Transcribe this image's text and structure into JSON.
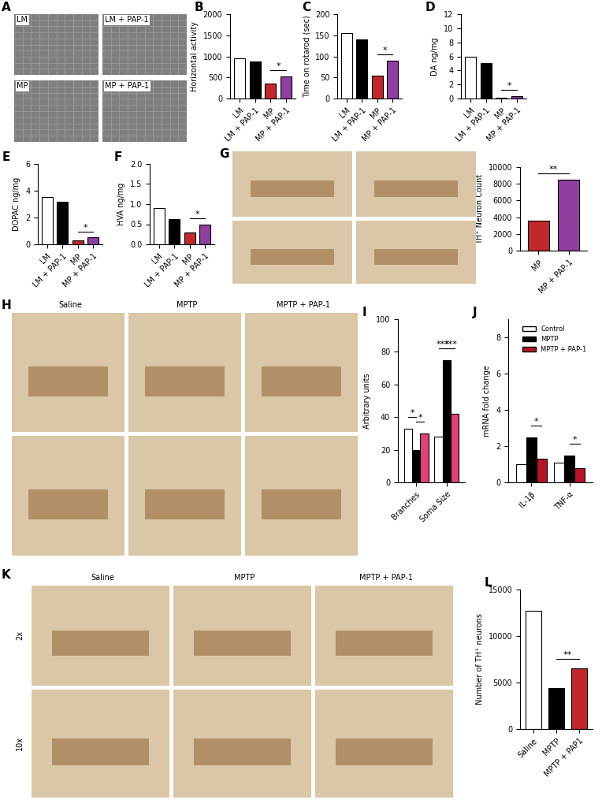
{
  "chart_data": [
    {
      "type": "bar",
      "title": "B",
      "ylabel": "Horizontal activity",
      "categories": [
        "LM",
        "LM + PAP-1",
        "MP",
        "MP + PAP-1"
      ],
      "values": [
        960,
        870,
        360,
        530
      ],
      "colors": [
        "white",
        "black",
        "#c0282d",
        "#8e3fa0"
      ],
      "ylim": [
        0,
        2000
      ],
      "yticks": [
        0,
        500,
        1000,
        1500,
        2000
      ],
      "annotations": [
        {
          "text": "*",
          "categories": [
            "MP",
            "MP + PAP-1"
          ]
        }
      ]
    },
    {
      "type": "bar",
      "title": "C",
      "ylabel": "Time on rotarod (sec)",
      "categories": [
        "LM",
        "LM + PAP-1",
        "MP",
        "MP + PAP-1"
      ],
      "values": [
        155,
        140,
        55,
        90
      ],
      "colors": [
        "white",
        "black",
        "#c0282d",
        "#8e3fa0"
      ],
      "ylim": [
        0,
        200
      ],
      "yticks": [
        0,
        50,
        100,
        150,
        200
      ],
      "annotations": [
        {
          "text": "*",
          "categories": [
            "MP",
            "MP + PAP-1"
          ]
        }
      ]
    },
    {
      "type": "bar",
      "title": "D",
      "ylabel": "DA ng/mg",
      "categories": [
        "LM",
        "LM + PAP-1",
        "MP",
        "MP + PAP-1"
      ],
      "values": [
        6.0,
        5.0,
        0.15,
        0.35
      ],
      "colors": [
        "white",
        "black",
        "#c0282d",
        "#8e3fa0"
      ],
      "ylim": [
        0,
        12
      ],
      "yticks": [
        0,
        2,
        4,
        6,
        8,
        10,
        12
      ],
      "annotations": [
        {
          "text": "*",
          "categories": [
            "MP",
            "MP + PAP-1"
          ]
        }
      ]
    },
    {
      "type": "bar",
      "title": "E",
      "ylabel": "DOPAC ng/mg",
      "categories": [
        "LM",
        "LM + PAP-1",
        "MP",
        "MP + PAP-1"
      ],
      "values": [
        3.5,
        3.2,
        0.28,
        0.55
      ],
      "colors": [
        "white",
        "black",
        "#c0282d",
        "#8e3fa0"
      ],
      "ylim": [
        0,
        6
      ],
      "yticks": [
        0,
        2,
        4,
        6
      ],
      "annotations": [
        {
          "text": "*",
          "categories": [
            "MP",
            "MP + PAP-1"
          ]
        }
      ]
    },
    {
      "type": "bar",
      "title": "F",
      "ylabel": "HVA ng/mg",
      "categories": [
        "LM",
        "LM + PAP-1",
        "MP",
        "MP + PAP-1"
      ],
      "values": [
        0.9,
        0.62,
        0.3,
        0.5
      ],
      "colors": [
        "white",
        "black",
        "#c0282d",
        "#8e3fa0"
      ],
      "ylim": [
        0.0,
        2.0
      ],
      "yticks": [
        0.0,
        0.5,
        1.0,
        1.5,
        2.0
      ],
      "annotations": [
        {
          "text": "*",
          "categories": [
            "MP",
            "MP + PAP-1"
          ]
        }
      ]
    },
    {
      "type": "bar",
      "ylabel": "TH⁺ Neuron Count",
      "categories": [
        "MP",
        "MP + PAP-1"
      ],
      "values": [
        3600,
        8500
      ],
      "colors": [
        "#c0282d",
        "#8e3fa0"
      ],
      "ylim": [
        0,
        10000
      ],
      "yticks": [
        0,
        2000,
        4000,
        6000,
        8000,
        10000
      ],
      "annotations": [
        {
          "text": "**",
          "categories": [
            "MP",
            "MP + PAP-1"
          ]
        }
      ]
    },
    {
      "type": "bar",
      "title": "I",
      "ylabel": "Arbitrary units",
      "categories": [
        "Branches",
        "Soma Size"
      ],
      "series": [
        {
          "color": "white",
          "values": [
            33,
            28
          ]
        },
        {
          "color": "black",
          "values": [
            20,
            75
          ]
        },
        {
          "color": "#e0407a",
          "values": [
            30,
            42
          ]
        }
      ],
      "ylim": [
        0,
        100
      ],
      "yticks": [
        0,
        20,
        40,
        60,
        80,
        100
      ],
      "annotations": [
        {
          "text": "*",
          "category": "Branches",
          "series": [
            0,
            1
          ]
        },
        {
          "text": "*",
          "category": "Branches",
          "series": [
            1,
            2
          ]
        },
        {
          "text": "***",
          "category": "Soma Size",
          "series": [
            0,
            1
          ]
        },
        {
          "text": "***",
          "category": "Soma Size",
          "series": [
            1,
            2
          ]
        }
      ]
    },
    {
      "type": "bar",
      "title": "J",
      "ylabel": "mRNA fold change",
      "categories": [
        "IL-1β",
        "TNF-α"
      ],
      "series": [
        {
          "name": "Control",
          "color": "white",
          "values": [
            1.0,
            1.1
          ]
        },
        {
          "name": "MPTP",
          "color": "black",
          "values": [
            2.5,
            1.5
          ]
        },
        {
          "name": "MPTP + PAP-1",
          "color": "#b5152b",
          "values": [
            1.3,
            0.8
          ]
        }
      ],
      "ylim": [
        0,
        9
      ],
      "yticks": [
        0,
        2,
        4,
        6,
        8
      ],
      "legend": "upper right",
      "annotations": [
        {
          "text": "*",
          "category": "IL-1β",
          "series": [
            1,
            2
          ]
        },
        {
          "text": "*",
          "category": "TNF-α",
          "series": [
            1,
            2
          ]
        }
      ]
    },
    {
      "type": "bar",
      "title": "L",
      "ylabel": "Number of TH⁺ neurons",
      "categories": [
        "Saline",
        "MPTP",
        "MPTP + PAP1"
      ],
      "values": [
        12700,
        4400,
        6500
      ],
      "colors": [
        "white",
        "black",
        "#c0282d"
      ],
      "ylim": [
        0,
        15000
      ],
      "yticks": [
        0,
        5000,
        10000,
        15000
      ],
      "annotations": [
        {
          "text": "**",
          "categories": [
            "MPTP",
            "MPTP + PAP1"
          ]
        }
      ]
    }
  ],
  "image_panels": [
    {
      "title": "A",
      "labels": [
        "LM",
        "LM + PAP-1",
        "MP",
        "MP + PAP-1"
      ]
    },
    {
      "title": "G"
    },
    {
      "title": "H",
      "labels": [
        "Saline",
        "MPTP",
        "MPTP + PAP-1"
      ]
    },
    {
      "title": "K",
      "labels": [
        "Saline",
        "MPTP",
        "MPTP + PAP-1"
      ],
      "row_labels": [
        "2x",
        "10x"
      ]
    }
  ]
}
